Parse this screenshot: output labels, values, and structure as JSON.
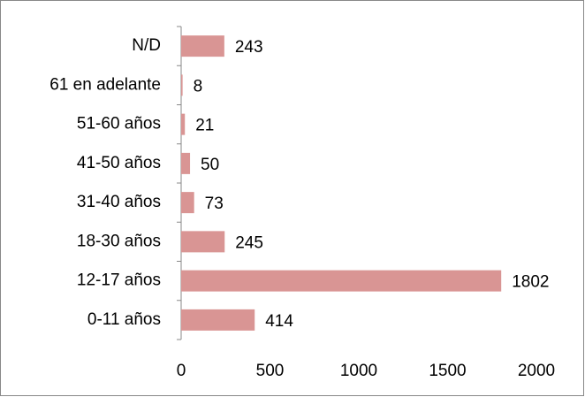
{
  "chart_data": {
    "type": "bar",
    "orientation": "horizontal",
    "categories": [
      "N/D",
      "61 en adelante",
      "51-60 años",
      "41-50 años",
      "31-40 años",
      "18-30 años",
      "12-17 años",
      "0-11 años"
    ],
    "values": [
      243,
      8,
      21,
      50,
      73,
      245,
      1802,
      414
    ],
    "color": "#d99594",
    "xlim": [
      0,
      2000
    ],
    "xticks": [
      0,
      500,
      1000,
      1500,
      2000
    ],
    "grid": false
  }
}
